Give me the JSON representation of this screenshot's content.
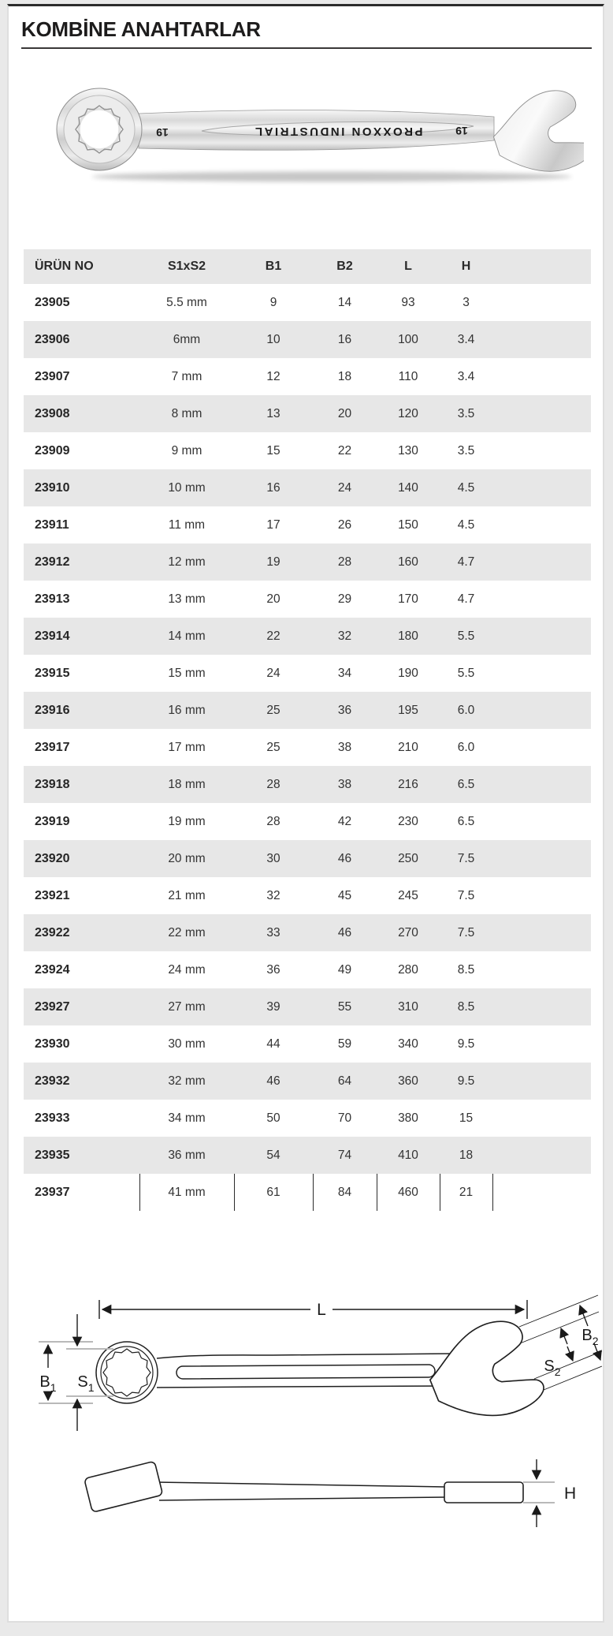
{
  "page": {
    "title": "KOMBİNE ANAHTARLAR"
  },
  "photo": {
    "engraving": "PROXXON INDUSTRIAL",
    "size_mark_left": "19",
    "size_mark_right": "19"
  },
  "table": {
    "columns": [
      "ÜRÜN NO",
      "S1xS2",
      "B1",
      "B2",
      "L",
      "H"
    ],
    "rows": [
      [
        "23905",
        "5.5 mm",
        "9",
        "14",
        "93",
        "3"
      ],
      [
        "23906",
        "6mm",
        "10",
        "16",
        "100",
        "3.4"
      ],
      [
        "23907",
        "7 mm",
        "12",
        "18",
        "110",
        "3.4"
      ],
      [
        "23908",
        "8 mm",
        "13",
        "20",
        "120",
        "3.5"
      ],
      [
        "23909",
        "9 mm",
        "15",
        "22",
        "130",
        "3.5"
      ],
      [
        "23910",
        "10 mm",
        "16",
        "24",
        "140",
        "4.5"
      ],
      [
        "23911",
        "11 mm",
        "17",
        "26",
        "150",
        "4.5"
      ],
      [
        "23912",
        "12 mm",
        "19",
        "28",
        "160",
        "4.7"
      ],
      [
        "23913",
        "13 mm",
        "20",
        "29",
        "170",
        "4.7"
      ],
      [
        "23914",
        "14 mm",
        "22",
        "32",
        "180",
        "5.5"
      ],
      [
        "23915",
        "15 mm",
        "24",
        "34",
        "190",
        "5.5"
      ],
      [
        "23916",
        "16 mm",
        "25",
        "36",
        "195",
        "6.0"
      ],
      [
        "23917",
        "17 mm",
        "25",
        "38",
        "210",
        "6.0"
      ],
      [
        "23918",
        "18 mm",
        "28",
        "38",
        "216",
        "6.5"
      ],
      [
        "23919",
        "19 mm",
        "28",
        "42",
        "230",
        "6.5"
      ],
      [
        "23920",
        "20 mm",
        "30",
        "46",
        "250",
        "7.5"
      ],
      [
        "23921",
        "21 mm",
        "32",
        "45",
        "245",
        "7.5"
      ],
      [
        "23922",
        "22 mm",
        "33",
        "46",
        "270",
        "7.5"
      ],
      [
        "23924",
        "24 mm",
        "36",
        "49",
        "280",
        "8.5"
      ],
      [
        "23927",
        "27 mm",
        "39",
        "55",
        "310",
        "8.5"
      ],
      [
        "23930",
        "30 mm",
        "44",
        "59",
        "340",
        "9.5"
      ],
      [
        "23932",
        "32 mm",
        "46",
        "64",
        "360",
        "9.5"
      ],
      [
        "23933",
        "34 mm",
        "50",
        "70",
        "380",
        "15"
      ],
      [
        "23935",
        "36 mm",
        "54",
        "74",
        "410",
        "18"
      ],
      [
        "23937",
        "41 mm",
        "61",
        "84",
        "460",
        "21"
      ]
    ]
  },
  "diagram_top": {
    "length_label": "L",
    "b1": {
      "main": "B",
      "sub": "1"
    },
    "s1": {
      "main": "S",
      "sub": "1"
    },
    "s2": {
      "main": "S",
      "sub": "2"
    },
    "b2": {
      "main": "B",
      "sub": "2"
    }
  },
  "diagram_side": {
    "height_label": "H"
  },
  "colors": {
    "page_background": "#e9e9e9",
    "card_top_border": "#2c2c2c",
    "row_stripe": "#e7e7e7",
    "title_text": "#1d1c1c"
  }
}
